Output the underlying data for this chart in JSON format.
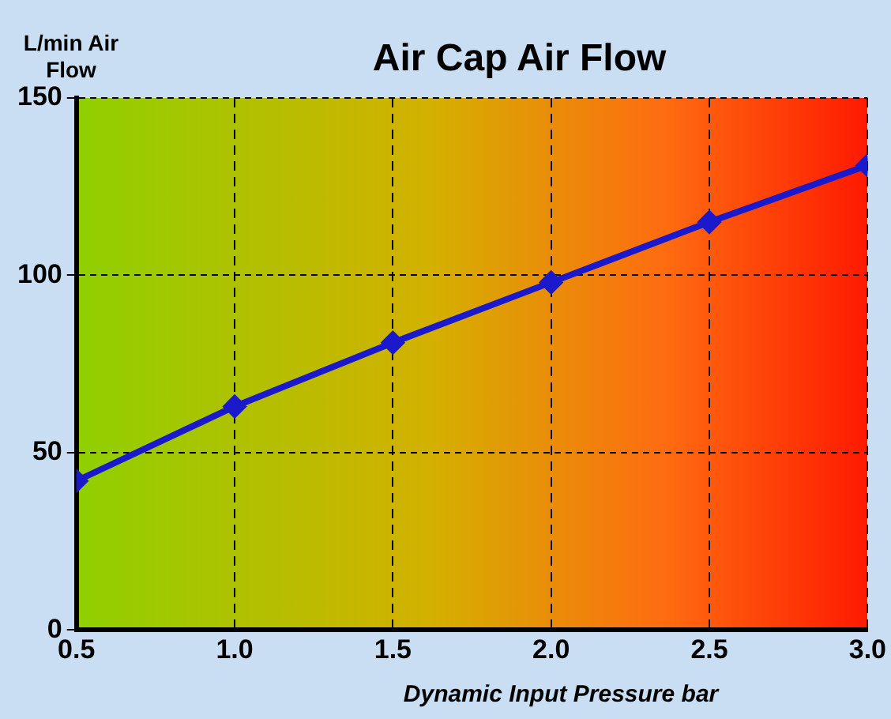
{
  "chart_data": {
    "type": "line",
    "title": "Air Cap Air Flow",
    "ylabel": "L/min Air Flow",
    "xlabel": "Dynamic Input Pressure bar",
    "x": [
      0.5,
      1.0,
      1.5,
      2.0,
      2.5,
      3.0
    ],
    "series": [
      {
        "color": "#1a1acc",
        "values": [
          42,
          63,
          81,
          98,
          115,
          131
        ]
      }
    ],
    "xlim": [
      0.5,
      3.0
    ],
    "xticks": [
      {
        "value": 0.5,
        "label": "0.5"
      },
      {
        "value": 1.0,
        "label": "1.0"
      },
      {
        "value": 1.5,
        "label": "1.5"
      },
      {
        "value": 2.0,
        "label": "2.0"
      },
      {
        "value": 2.5,
        "label": "2.5"
      },
      {
        "value": 3.0,
        "label": "3.0"
      }
    ],
    "ylim": [
      0,
      150
    ],
    "yticks": [
      0,
      50,
      100,
      150
    ],
    "grid": true,
    "marker": "diamond",
    "line_style": "solid",
    "legend": false
  }
}
